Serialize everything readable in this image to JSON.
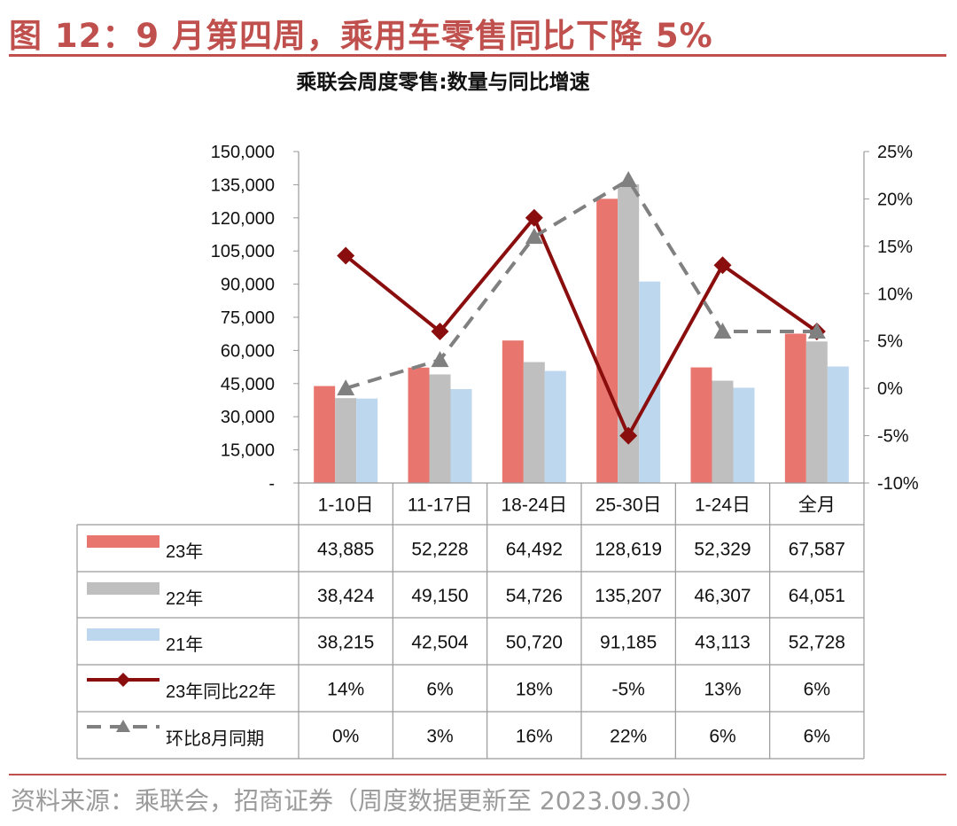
{
  "figure": {
    "title": "图 12：9 月第四周，乘用车零售同比下降 5%",
    "source": "资料来源：乘联会，招商证券（周度数据更新至 2023.09.30）"
  },
  "colors": {
    "title": "#c0504d",
    "bar_23": "#e8766f",
    "bar_22": "#bfbfbf",
    "bar_21": "#bdd7ee",
    "line_yoy": "#8b0e0e",
    "line_mom": "#808080",
    "grid": "#9a9a9a"
  },
  "chart_data": {
    "type": "bar+line",
    "title": "乘联会周度零售:数量与同比增速",
    "categories": [
      "1-10日",
      "11-17日",
      "18-24日",
      "25-30日",
      "1-24日",
      "全月"
    ],
    "left_axis": {
      "ylim": [
        0,
        150000
      ],
      "tick_values": [
        0,
        15000,
        30000,
        45000,
        60000,
        75000,
        90000,
        105000,
        120000,
        135000,
        150000
      ],
      "tick_labels": [
        "-",
        "15,000",
        "30,000",
        "45,000",
        "60,000",
        "75,000",
        "90,000",
        "105,000",
        "120,000",
        "135,000",
        "150,000"
      ]
    },
    "right_axis": {
      "ylim": [
        -10,
        25
      ],
      "tick_values": [
        -10,
        -5,
        0,
        5,
        10,
        15,
        20,
        25
      ],
      "tick_labels": [
        "-10%",
        "-5%",
        "0%",
        "5%",
        "10%",
        "15%",
        "20%",
        "25%"
      ]
    },
    "bar_series": [
      {
        "name": "23年",
        "color_key": "bar_23",
        "values": [
          43885,
          52228,
          64492,
          128619,
          52329,
          67587
        ],
        "labels": [
          "43,885",
          "52,228",
          "64,492",
          "128,619",
          "52,329",
          "67,587"
        ]
      },
      {
        "name": "22年",
        "color_key": "bar_22",
        "values": [
          38424,
          49150,
          54726,
          135207,
          46307,
          64051
        ],
        "labels": [
          "38,424",
          "49,150",
          "54,726",
          "135,207",
          "46,307",
          "64,051"
        ]
      },
      {
        "name": "21年",
        "color_key": "bar_21",
        "values": [
          38215,
          42504,
          50720,
          91185,
          43113,
          52728
        ],
        "labels": [
          "38,215",
          "42,504",
          "50,720",
          "91,185",
          "43,113",
          "52,728"
        ]
      }
    ],
    "line_series": [
      {
        "name": "23年同比22年",
        "color_key": "line_yoy",
        "marker": "diamond",
        "dash": false,
        "values": [
          14,
          6,
          18,
          -5,
          13,
          6
        ],
        "labels": [
          "14%",
          "6%",
          "18%",
          "-5%",
          "13%",
          "6%"
        ]
      },
      {
        "name": "环比8月同期",
        "color_key": "line_mom",
        "marker": "triangle",
        "dash": true,
        "values": [
          0,
          3,
          16,
          22,
          6,
          6
        ],
        "labels": [
          "0%",
          "3%",
          "16%",
          "22%",
          "6%",
          "6%"
        ]
      }
    ]
  }
}
